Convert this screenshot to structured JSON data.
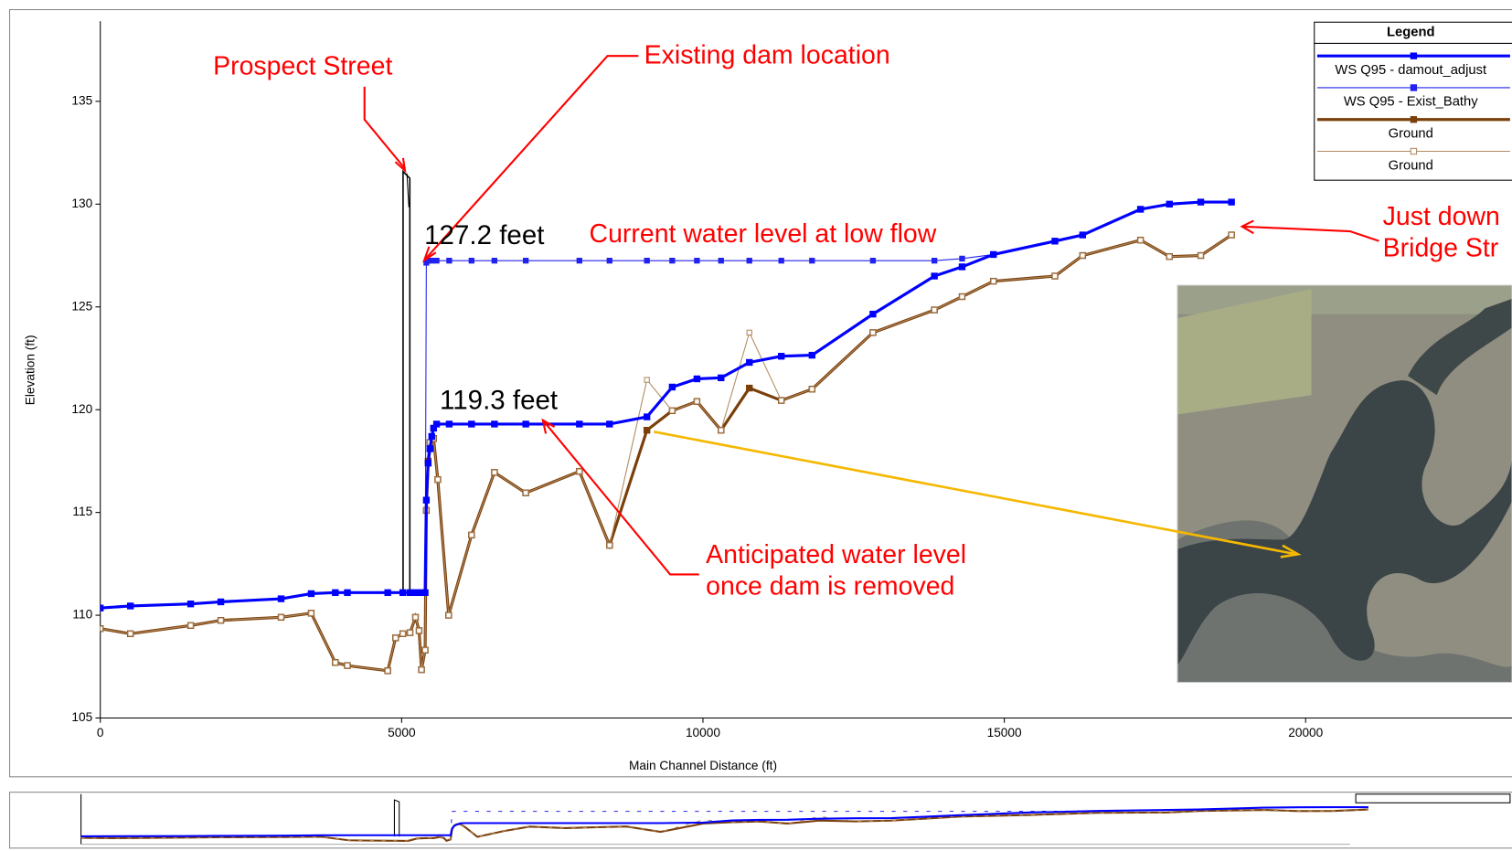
{
  "chart_data": {
    "type": "line",
    "xlabel": "Main Channel Distance (ft)",
    "ylabel": "Elevation (ft)",
    "xlim": [
      0,
      23424
    ],
    "ylim": [
      105,
      138.9
    ],
    "xticks": [
      0,
      5000,
      10000,
      15000,
      20000
    ],
    "yticks": [
      105,
      110,
      115,
      120,
      125,
      130,
      135
    ],
    "legend_title": "Legend",
    "legend_position": "upper right",
    "series": [
      {
        "name": "WS  Q95 - damout_adjust",
        "color": "#0000ff",
        "width": 3,
        "marker": "filled",
        "x": [
          0,
          500,
          1500,
          2000,
          3000,
          3500,
          3900,
          4100,
          4770,
          5020,
          5140,
          5230,
          5330,
          5390,
          5410,
          5440,
          5470,
          5500,
          5530,
          5580,
          5790,
          6160,
          6540,
          7060,
          7950,
          8450,
          9070,
          9490,
          9900,
          10300,
          10770,
          11300,
          11810,
          12820,
          13840,
          14300,
          14820,
          15840,
          16300,
          17260,
          17740,
          18260,
          18770
        ],
        "values": [
          110.35,
          110.45,
          110.55,
          110.65,
          110.8,
          111.05,
          111.1,
          111.1,
          111.1,
          111.1,
          111.1,
          111.1,
          111.1,
          111.1,
          115.6,
          117.4,
          118.1,
          118.7,
          119.1,
          119.3,
          119.3,
          119.3,
          119.3,
          119.3,
          119.3,
          119.3,
          119.65,
          121.1,
          121.5,
          121.55,
          122.3,
          122.6,
          122.65,
          124.65,
          126.5,
          126.95,
          127.55,
          128.2,
          128.5,
          129.75,
          130.0,
          130.1,
          130.1
        ]
      },
      {
        "name": "WS  Q95 - Exist_Bathy",
        "color": "#2222ee",
        "width": 1,
        "marker": "filled",
        "x": [
          0,
          500,
          1500,
          2000,
          3000,
          3500,
          3900,
          4100,
          4770,
          5020,
          5140,
          5230,
          5330,
          5390,
          5410,
          5440,
          5500,
          5580,
          5790,
          6160,
          6540,
          7060,
          7950,
          8450,
          9070,
          9490,
          9900,
          10300,
          10770,
          11300,
          11810,
          12820,
          13840,
          14300,
          14820,
          15840,
          16300,
          17260,
          17740,
          18260,
          18770
        ],
        "values": [
          110.35,
          110.45,
          110.55,
          110.65,
          110.8,
          111.05,
          111.1,
          111.1,
          111.1,
          111.1,
          111.1,
          111.1,
          111.1,
          111.1,
          127.15,
          127.25,
          127.25,
          127.25,
          127.25,
          127.25,
          127.25,
          127.25,
          127.25,
          127.25,
          127.25,
          127.25,
          127.25,
          127.25,
          127.25,
          127.25,
          127.25,
          127.25,
          127.25,
          127.35,
          127.55,
          128.2,
          128.5,
          129.75,
          130.0,
          130.1,
          130.1
        ]
      },
      {
        "name": "Ground",
        "color": "#7b3f0a",
        "width": 3,
        "marker": "filled",
        "x": [
          0,
          500,
          1500,
          2000,
          3000,
          3500,
          3900,
          4100,
          4770,
          4900,
          5020,
          5140,
          5230,
          5290,
          5330,
          5390,
          5410,
          5440,
          5470,
          5530,
          5600,
          5780,
          6160,
          6540,
          7060,
          7950,
          8450,
          9070,
          9490,
          9900,
          10300,
          10770,
          11300,
          11810,
          12820,
          13840,
          14300,
          14820,
          15840,
          16300,
          17260,
          17740,
          18260,
          18770
        ],
        "values": [
          109.35,
          109.1,
          109.5,
          109.75,
          109.9,
          110.1,
          107.7,
          107.55,
          107.3,
          108.9,
          109.1,
          109.15,
          109.9,
          109.25,
          107.35,
          108.3,
          115.1,
          117.5,
          118.4,
          118.6,
          116.6,
          110.0,
          113.9,
          116.95,
          115.95,
          117.0,
          113.4,
          119.0,
          119.95,
          120.4,
          119.0,
          121.05,
          120.45,
          121.0,
          123.75,
          124.85,
          125.5,
          126.25,
          126.5,
          127.5,
          128.25,
          127.45,
          127.5,
          128.5
        ]
      },
      {
        "name": "Ground",
        "color": "#b08a60",
        "width": 1,
        "marker": "hollow",
        "x": [
          0,
          500,
          1500,
          2000,
          3000,
          3500,
          3900,
          4100,
          4770,
          4900,
          5020,
          5140,
          5230,
          5290,
          5330,
          5390,
          5410,
          5440,
          5470,
          5530,
          5600,
          5780,
          6160,
          6540,
          7060,
          7950,
          8450,
          9070,
          9490,
          9900,
          10300,
          10770,
          11300,
          11810,
          12820,
          13840,
          14300,
          14820,
          15840,
          16300,
          17260,
          17740,
          18260,
          18770
        ],
        "values": [
          109.35,
          109.1,
          109.5,
          109.75,
          109.9,
          110.1,
          107.7,
          107.55,
          107.3,
          108.9,
          109.1,
          109.15,
          109.9,
          109.25,
          107.35,
          108.3,
          115.1,
          117.4,
          118.4,
          118.6,
          116.6,
          110.0,
          113.9,
          116.95,
          115.95,
          117.0,
          113.4,
          121.45,
          119.95,
          120.4,
          119.0,
          123.75,
          120.45,
          121.0,
          123.75,
          124.85,
          125.5,
          126.25,
          126.5,
          127.5,
          128.25,
          127.45,
          127.5,
          128.5
        ]
      }
    ],
    "annotations": [
      "Prospect Street",
      "Existing dam location",
      "127.2 feet",
      "Current water level at low flow",
      "119.3 feet",
      "Anticipated water level",
      "once dam is removed",
      "Just down",
      "Bridge Str"
    ]
  }
}
